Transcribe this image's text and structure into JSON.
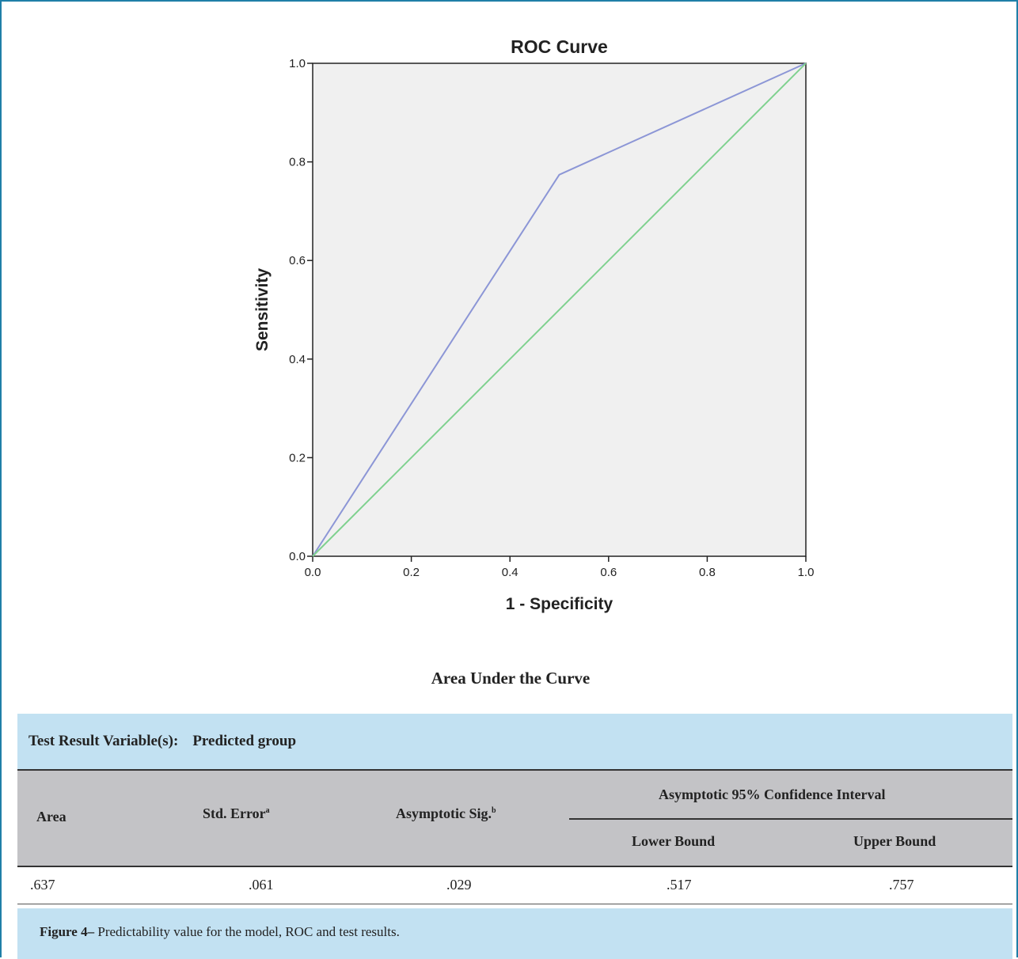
{
  "chart_data": {
    "type": "line",
    "title": "ROC Curve",
    "xlabel": "1 - Specificity",
    "ylabel": "Sensitivity",
    "xlim": [
      0,
      1
    ],
    "ylim": [
      0,
      1
    ],
    "xticks": [
      "0.0",
      "0.2",
      "0.4",
      "0.6",
      "0.8",
      "1.0"
    ],
    "yticks": [
      "0.0",
      "0.2",
      "0.4",
      "0.6",
      "0.8",
      "1.0"
    ],
    "grid": false,
    "series": [
      {
        "x": [
          0.0,
          0.5,
          1.0
        ],
        "y": [
          0.0,
          0.774,
          1.0
        ],
        "color": "#8c96d6"
      },
      {
        "x": [
          0.0,
          1.0
        ],
        "y": [
          0.0,
          1.0
        ],
        "color": "#7fd18f"
      }
    ],
    "plot_background": "#f0f0f0"
  },
  "auc_title": "Area Under the Curve",
  "table": {
    "header_label": "Test Result Variable(s):",
    "header_value": "Predicted group",
    "columns": {
      "area": "Area",
      "std_error": "Std. Error",
      "std_error_sup": "a",
      "asym_sig": "Asymptotic Sig.",
      "asym_sig_sup": "b",
      "ci": "Asymptotic 95% Confidence Interval",
      "lower": "Lower Bound",
      "upper": "Upper Bound"
    },
    "row": {
      "area": ".637",
      "std_error": ".061",
      "asym_sig": ".029",
      "lower": ".517",
      "upper": ".757"
    }
  },
  "caption": {
    "label": "Figure 4–",
    "text": " Predictability value for the model, ROC and test results."
  },
  "colors": {
    "accent_border": "#1f7fa8",
    "header_bg": "#c2e1f2",
    "column_header_bg": "#c3c3c6"
  }
}
